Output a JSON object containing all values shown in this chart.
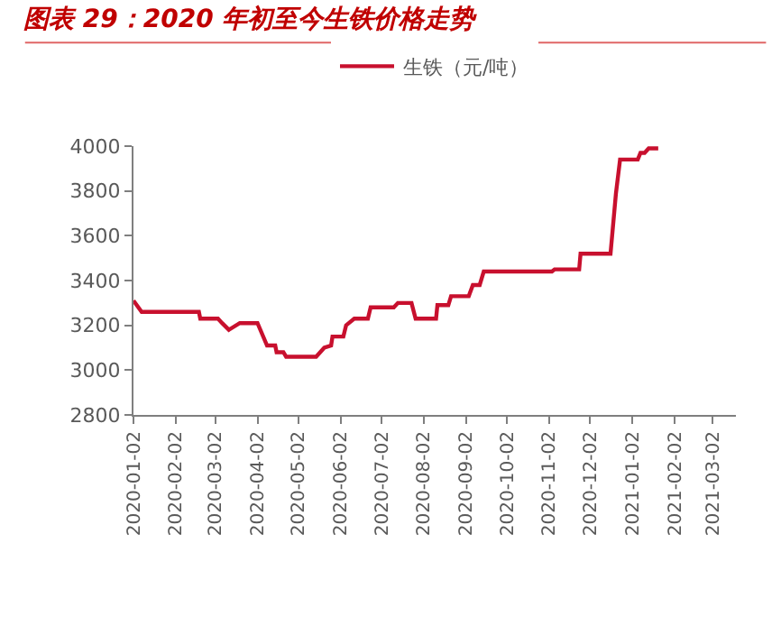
{
  "chart_data": {
    "type": "line",
    "title": "图表 29：2020 年初至今生铁价格走势",
    "x": [
      "2020-01-02",
      "2020-01-08",
      "2020-02-19",
      "2020-02-20",
      "2020-03-04",
      "2020-03-07",
      "2020-03-12",
      "2020-03-20",
      "2020-04-02",
      "2020-04-09",
      "2020-04-15",
      "2020-04-16",
      "2020-04-21",
      "2020-04-23",
      "2020-05-15",
      "2020-05-21",
      "2020-05-26",
      "2020-05-27",
      "2020-06-04",
      "2020-06-06",
      "2020-06-12",
      "2020-06-22",
      "2020-06-24",
      "2020-07-11",
      "2020-07-14",
      "2020-07-24",
      "2020-07-27",
      "2020-08-11",
      "2020-08-12",
      "2020-08-20",
      "2020-08-22",
      "2020-09-04",
      "2020-09-07",
      "2020-09-12",
      "2020-09-15",
      "2020-11-04",
      "2020-11-06",
      "2020-11-24",
      "2020-11-25",
      "2020-12-17",
      "2020-12-21",
      "2020-12-24",
      "2021-01-06",
      "2021-01-08",
      "2021-01-11",
      "2021-01-14",
      "2021-01-21"
    ],
    "series": [
      {
        "name": "生铁（元/吨）",
        "color": "#c8102e",
        "values": [
          3310,
          3260,
          3260,
          3230,
          3230,
          3210,
          3180,
          3210,
          3210,
          3110,
          3110,
          3080,
          3080,
          3060,
          3060,
          3100,
          3110,
          3150,
          3150,
          3200,
          3230,
          3230,
          3280,
          3280,
          3300,
          3300,
          3230,
          3230,
          3290,
          3290,
          3330,
          3330,
          3380,
          3380,
          3440,
          3440,
          3450,
          3450,
          3520,
          3520,
          3790,
          3940,
          3940,
          3970,
          3970,
          3990,
          3990
        ]
      }
    ],
    "xlim": [
      "2020-01-02",
      "2021-03-19"
    ],
    "xticks": [
      "2020-01-02",
      "2020-02-02",
      "2020-03-02",
      "2020-04-02",
      "2020-05-02",
      "2020-06-02",
      "2020-07-02",
      "2020-08-02",
      "2020-09-02",
      "2020-10-02",
      "2020-11-02",
      "2020-12-02",
      "2021-01-02",
      "2021-02-02",
      "2021-03-02"
    ],
    "ylim": [
      2800,
      4000
    ],
    "yticks": [
      2800,
      3000,
      3200,
      3400,
      3600,
      3800,
      4000
    ],
    "legend": "top",
    "marker": "none",
    "line_style": "solid"
  }
}
